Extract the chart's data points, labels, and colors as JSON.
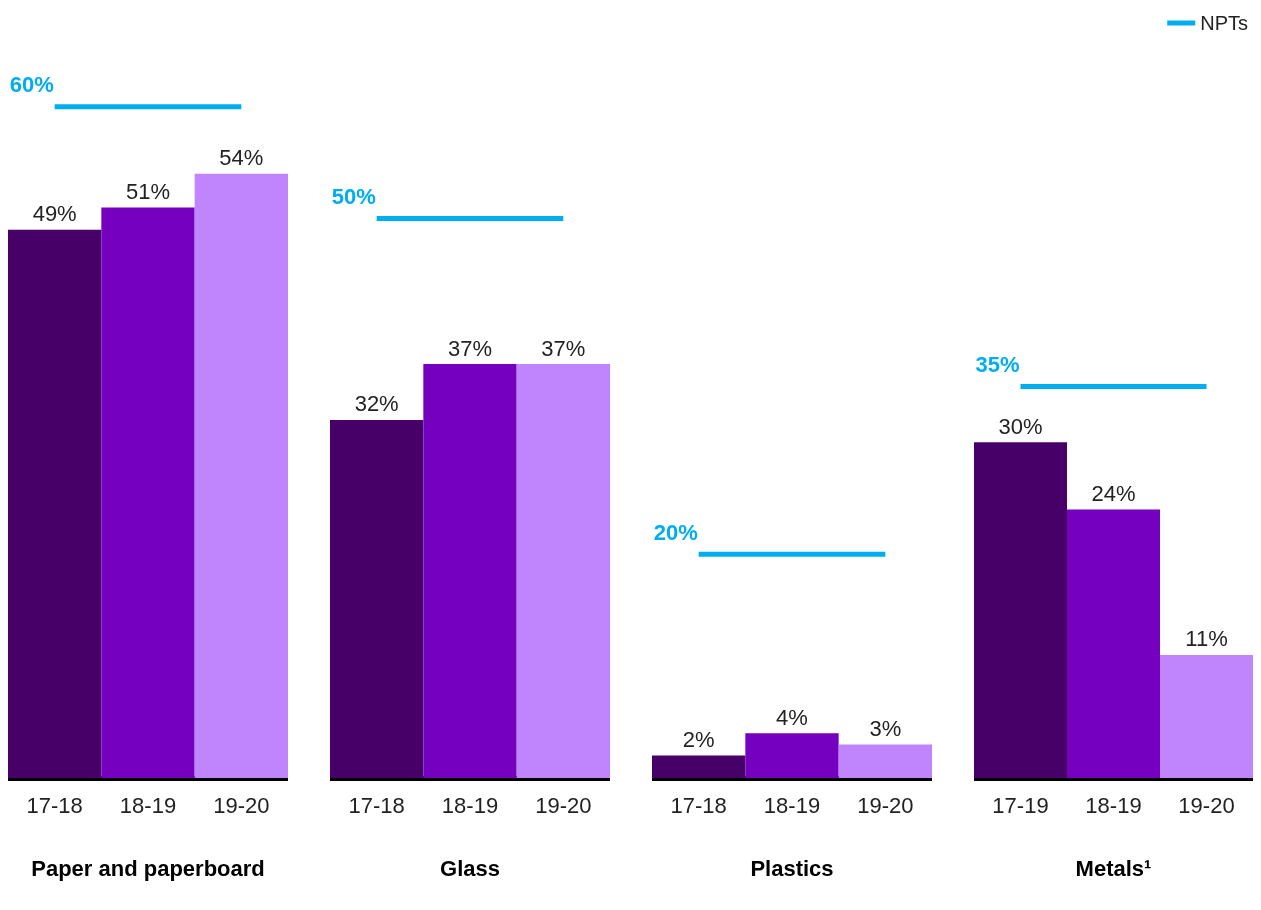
{
  "chart_data": [
    {
      "type": "bar",
      "xlabel": "Paper and paperboard",
      "categories": [
        "17-18",
        "18-19",
        "19-20"
      ],
      "marker": "none",
      "legend": false,
      "series": [
        {
          "colors": [
            "#470068",
            "#7500c0",
            "#c084fd"
          ],
          "values": [
            49,
            51,
            54
          ],
          "value_labels": [
            "49%",
            "51%",
            "54%"
          ]
        },
        {
          "type": "line",
          "color": "#00aeef",
          "values": [
            60,
            60,
            60
          ],
          "value_labels": [
            "60%",
            null,
            null
          ]
        }
      ]
    },
    {
      "type": "bar",
      "xlabel": "Glass",
      "categories": [
        "17-18",
        "18-19",
        "19-20"
      ],
      "marker": "none",
      "legend": false,
      "series": [
        {
          "colors": [
            "#470068",
            "#7500c0",
            "#c084fd"
          ],
          "values": [
            32,
            37,
            37
          ],
          "value_labels": [
            "32%",
            "37%",
            "37%"
          ]
        },
        {
          "type": "line",
          "color": "#00aeef",
          "values": [
            50,
            50,
            50
          ],
          "value_labels": [
            "50%",
            null,
            null
          ]
        }
      ]
    },
    {
      "type": "bar",
      "xlabel": "Plastics",
      "categories": [
        "17-18",
        "18-19",
        "19-20"
      ],
      "marker": "none",
      "legend": false,
      "series": [
        {
          "colors": [
            "#470068",
            "#7500c0",
            "#c084fd"
          ],
          "values": [
            2,
            4,
            3
          ],
          "value_labels": [
            "2%",
            "4%",
            "3%"
          ]
        },
        {
          "type": "line",
          "color": "#00aeef",
          "values": [
            20,
            20,
            20
          ],
          "value_labels": [
            "20%",
            null,
            null
          ]
        }
      ]
    },
    {
      "type": "bar",
      "xlabel": "Metals¹",
      "categories": [
        "17-19",
        "18-19",
        "19-20"
      ],
      "marker": "none",
      "legend": "top right",
      "series": [
        {
          "colors": [
            "#470068",
            "#7500c0",
            "#c084fd"
          ],
          "values": [
            30,
            24,
            11
          ],
          "value_labels": [
            "30%",
            "24%",
            "11%"
          ]
        },
        {
          "type": "line",
          "name": "NPTs",
          "color": "#00aeef",
          "values": [
            35,
            35,
            35
          ],
          "value_labels": [
            "35%",
            null,
            null
          ]
        }
      ]
    }
  ]
}
